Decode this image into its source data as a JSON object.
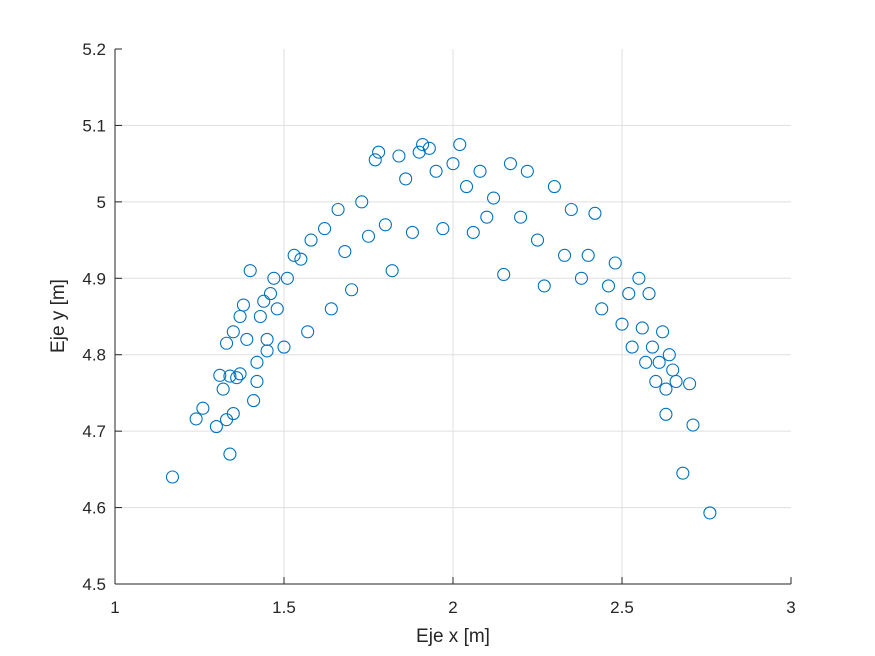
{
  "chart_data": {
    "type": "scatter",
    "title": "",
    "xlabel": "Eje x [m]",
    "ylabel": "Eje y [m]",
    "xlim": [
      1,
      3
    ],
    "ylim": [
      4.5,
      5.2
    ],
    "xticks": [
      "1",
      "1.5",
      "2",
      "2.5",
      "3"
    ],
    "yticks": [
      "4.5",
      "4.6",
      "4.7",
      "4.8",
      "4.9",
      "5",
      "5.1",
      "5.2"
    ],
    "grid": true,
    "marker": "circle-open",
    "color": "#0072BD",
    "series": [
      {
        "points": [
          [
            1.17,
            4.64
          ],
          [
            1.24,
            4.716
          ],
          [
            1.26,
            4.73
          ],
          [
            1.3,
            4.706
          ],
          [
            1.31,
            4.773
          ],
          [
            1.32,
            4.755
          ],
          [
            1.33,
            4.715
          ],
          [
            1.34,
            4.67
          ],
          [
            1.35,
            4.723
          ],
          [
            1.34,
            4.772
          ],
          [
            1.36,
            4.77
          ],
          [
            1.37,
            4.775
          ],
          [
            1.33,
            4.815
          ],
          [
            1.35,
            4.83
          ],
          [
            1.37,
            4.85
          ],
          [
            1.38,
            4.865
          ],
          [
            1.39,
            4.82
          ],
          [
            1.4,
            4.91
          ],
          [
            1.41,
            4.74
          ],
          [
            1.42,
            4.79
          ],
          [
            1.43,
            4.85
          ],
          [
            1.44,
            4.87
          ],
          [
            1.45,
            4.82
          ],
          [
            1.46,
            4.88
          ],
          [
            1.47,
            4.9
          ],
          [
            1.48,
            4.86
          ],
          [
            1.42,
            4.765
          ],
          [
            1.45,
            4.805
          ],
          [
            1.5,
            4.81
          ],
          [
            1.51,
            4.9
          ],
          [
            1.53,
            4.93
          ],
          [
            1.55,
            4.925
          ],
          [
            1.57,
            4.83
          ],
          [
            1.58,
            4.95
          ],
          [
            1.62,
            4.965
          ],
          [
            1.64,
            4.86
          ],
          [
            1.66,
            4.99
          ],
          [
            1.68,
            4.935
          ],
          [
            1.7,
            4.885
          ],
          [
            1.73,
            5.0
          ],
          [
            1.75,
            4.955
          ],
          [
            1.77,
            5.055
          ],
          [
            1.78,
            5.065
          ],
          [
            1.8,
            4.97
          ],
          [
            1.82,
            4.91
          ],
          [
            1.84,
            5.06
          ],
          [
            1.86,
            5.03
          ],
          [
            1.88,
            4.96
          ],
          [
            1.9,
            5.065
          ],
          [
            1.91,
            5.075
          ],
          [
            1.93,
            5.07
          ],
          [
            1.95,
            5.04
          ],
          [
            1.97,
            4.965
          ],
          [
            2.0,
            5.05
          ],
          [
            2.02,
            5.075
          ],
          [
            2.04,
            5.02
          ],
          [
            2.06,
            4.96
          ],
          [
            2.08,
            5.04
          ],
          [
            2.1,
            4.98
          ],
          [
            2.12,
            5.005
          ],
          [
            2.15,
            4.905
          ],
          [
            2.17,
            5.05
          ],
          [
            2.2,
            4.98
          ],
          [
            2.22,
            5.04
          ],
          [
            2.25,
            4.95
          ],
          [
            2.27,
            4.89
          ],
          [
            2.3,
            5.02
          ],
          [
            2.33,
            4.93
          ],
          [
            2.35,
            4.99
          ],
          [
            2.38,
            4.9
          ],
          [
            2.4,
            4.93
          ],
          [
            2.42,
            4.985
          ],
          [
            2.44,
            4.86
          ],
          [
            2.46,
            4.89
          ],
          [
            2.48,
            4.92
          ],
          [
            2.5,
            4.84
          ],
          [
            2.52,
            4.88
          ],
          [
            2.53,
            4.81
          ],
          [
            2.55,
            4.9
          ],
          [
            2.56,
            4.835
          ],
          [
            2.57,
            4.79
          ],
          [
            2.58,
            4.88
          ],
          [
            2.59,
            4.81
          ],
          [
            2.6,
            4.765
          ],
          [
            2.61,
            4.79
          ],
          [
            2.62,
            4.83
          ],
          [
            2.63,
            4.755
          ],
          [
            2.63,
            4.722
          ],
          [
            2.64,
            4.8
          ],
          [
            2.65,
            4.78
          ],
          [
            2.66,
            4.765
          ],
          [
            2.68,
            4.645
          ],
          [
            2.7,
            4.762
          ],
          [
            2.71,
            4.708
          ],
          [
            2.76,
            4.593
          ]
        ]
      }
    ]
  }
}
